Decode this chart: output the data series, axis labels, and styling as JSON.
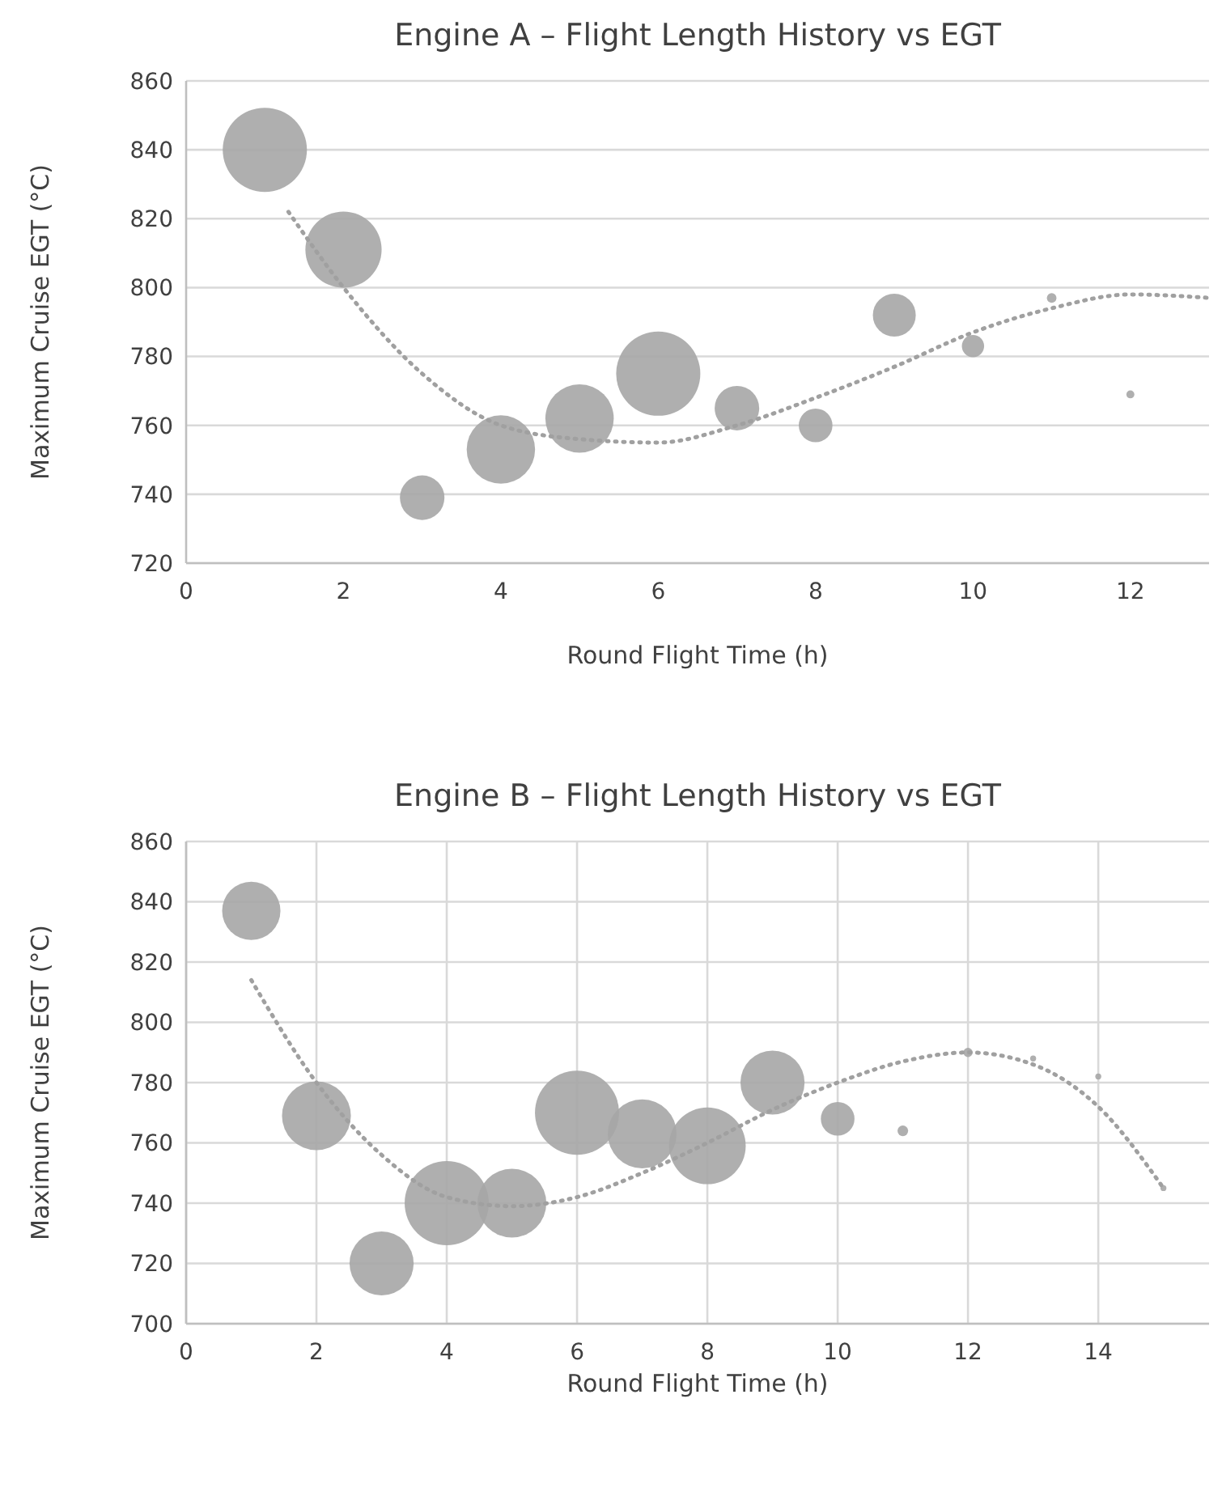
{
  "chart_data": [
    {
      "type": "bubble",
      "title": "Engine A – Flight Length History vs EGT",
      "xlabel": "Round Flight Time (h)",
      "ylabel": "Maximum Cruise EGT (°C)",
      "xlim": [
        0,
        13
      ],
      "xticks": [
        0,
        2,
        4,
        6,
        8,
        10,
        12
      ],
      "ylim": [
        720,
        860
      ],
      "yticks": [
        720,
        740,
        760,
        780,
        800,
        820,
        840,
        860
      ],
      "grid": "y",
      "series": [
        {
          "type": "bubble",
          "color": "#a6a6a6",
          "x": [
            1,
            2,
            3,
            4,
            5,
            6,
            7,
            8,
            9,
            10,
            11,
            12
          ],
          "values": [
            840,
            811,
            739,
            753,
            762,
            775,
            765,
            760,
            792,
            783,
            797,
            769
          ],
          "sizes": [
            1,
            0.82,
            0.28,
            0.66,
            0.66,
            1,
            0.28,
            0.16,
            0.26,
            0.07,
            0.013,
            0.009
          ]
        },
        {
          "type": "line",
          "color": "#a0a0a0",
          "line_style": "dotted",
          "marker": "none",
          "x": [
            1.3,
            2,
            3,
            4,
            5,
            6,
            7,
            8,
            9,
            10,
            11,
            12,
            13
          ],
          "values": [
            822,
            800,
            775,
            760,
            756,
            755,
            760,
            768,
            777,
            787,
            794,
            798,
            797
          ]
        }
      ]
    },
    {
      "type": "bubble",
      "title": "Engine B – Flight Length History vs EGT",
      "xlabel": "Round Flight Time (h)",
      "ylabel": "Maximum Cruise EGT (°C)",
      "xlim": [
        0,
        15.7
      ],
      "xticks": [
        0,
        2,
        4,
        6,
        8,
        10,
        12,
        14
      ],
      "ylim": [
        700,
        860
      ],
      "yticks": [
        700,
        720,
        740,
        760,
        780,
        800,
        820,
        840,
        860
      ],
      "grid": true,
      "series": [
        {
          "type": "bubble",
          "color": "#a6a6a6",
          "x": [
            1,
            2,
            3,
            4,
            5,
            6,
            7,
            8,
            9,
            10,
            11,
            12,
            13,
            14,
            15
          ],
          "values": [
            837,
            769,
            720,
            740,
            740,
            770,
            763,
            759,
            780,
            768,
            764,
            790,
            788,
            782,
            745
          ],
          "sizes": [
            0.48,
            0.67,
            0.58,
            1,
            0.67,
            1,
            0.67,
            0.83,
            0.58,
            0.16,
            0.016,
            0.012,
            0.005,
            0.005,
            0.005
          ]
        },
        {
          "type": "line",
          "color": "#a0a0a0",
          "line_style": "dotted",
          "marker": "none",
          "x": [
            1,
            2,
            3,
            4,
            5,
            6,
            7,
            8,
            9,
            10,
            11,
            12,
            13,
            14,
            15
          ],
          "values": [
            814,
            780,
            756,
            742,
            739,
            742,
            750,
            760,
            771,
            780,
            787,
            790,
            786,
            772,
            745
          ]
        }
      ]
    }
  ]
}
